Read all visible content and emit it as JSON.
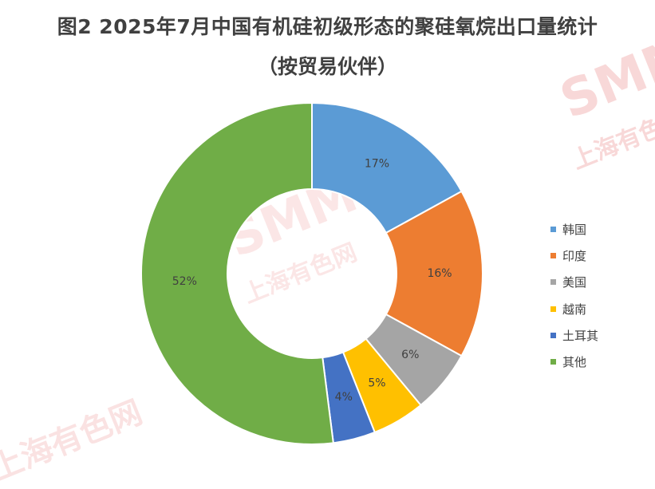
{
  "chart_data": {
    "type": "pie",
    "variant": "donut",
    "title": "图2 2025年7月中国有机硅初级形态的聚硅氧烷出口量统计",
    "subtitle": "（按贸易伙伴）",
    "categories": [
      "韩国",
      "印度",
      "美国",
      "越南",
      "土耳其",
      "其他"
    ],
    "values": [
      17,
      16,
      6,
      5,
      4,
      52
    ],
    "data_labels": [
      "17%",
      "16%",
      "6%",
      "5%",
      "4%",
      "52%"
    ],
    "colors": [
      "#5b9bd5",
      "#ed7d31",
      "#a5a5a5",
      "#ffc000",
      "#4472c4",
      "#70ad47"
    ],
    "legend_position": "right"
  },
  "watermark": {
    "brand": "SMM",
    "text": "上海有色网"
  }
}
